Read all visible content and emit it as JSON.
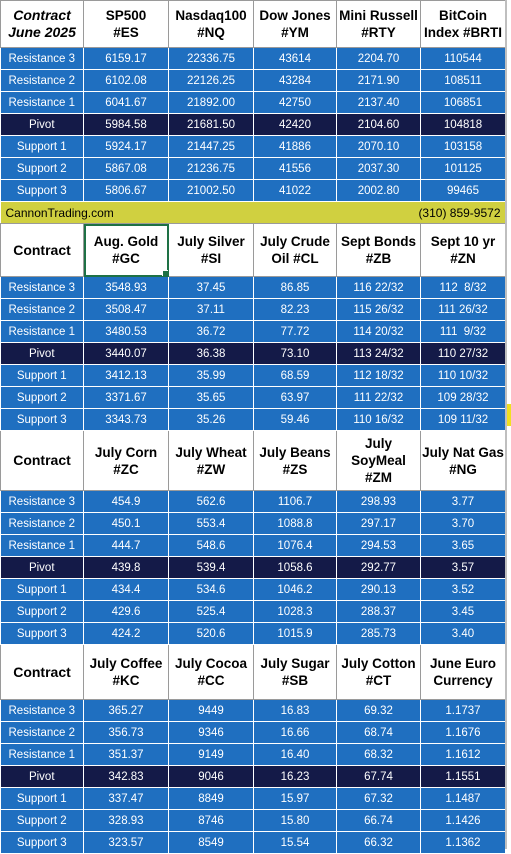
{
  "site": "CannonTrading.com",
  "phone": "(310) 859-9572",
  "sections": [
    {
      "label": "Contract\nJune 2025",
      "headers": [
        "SP500\n#ES",
        "Nasdaq100\n#NQ",
        "Dow Jones\n#YM",
        "Mini Russell\n#RTY",
        "BitCoin\nIndex #BRTI"
      ],
      "rows": [
        {
          "name": "Resistance 3",
          "values": [
            "6159.17",
            "22336.75",
            "43614",
            "2204.70",
            "110544"
          ]
        },
        {
          "name": "Resistance 2",
          "values": [
            "6102.08",
            "22126.25",
            "43284",
            "2171.90",
            "108511"
          ]
        },
        {
          "name": "Resistance 1",
          "values": [
            "6041.67",
            "21892.00",
            "42750",
            "2137.40",
            "106851"
          ]
        },
        {
          "name": "Pivot",
          "values": [
            "5984.58",
            "21681.50",
            "42420",
            "2104.60",
            "104818"
          ]
        },
        {
          "name": "Support 1",
          "values": [
            "5924.17",
            "21447.25",
            "41886",
            "2070.10",
            "103158"
          ]
        },
        {
          "name": "Support 2",
          "values": [
            "5867.08",
            "21236.75",
            "41556",
            "2037.30",
            "101125"
          ]
        },
        {
          "name": "Support 3",
          "values": [
            "5806.67",
            "21002.50",
            "41022",
            "2002.80",
            "99465"
          ]
        }
      ]
    },
    {
      "label": "Contract",
      "headers": [
        "Aug. Gold\n#GC",
        "July Silver\n#SI",
        "July Crude\nOil #CL",
        "Sept Bonds\n#ZB",
        "Sept 10 yr\n#ZN"
      ],
      "rows": [
        {
          "name": "Resistance 3",
          "values": [
            "3548.93",
            "37.45",
            "86.85",
            "116 22/32",
            "112  8/32"
          ]
        },
        {
          "name": "Resistance 2",
          "values": [
            "3508.47",
            "37.11",
            "82.23",
            "115 26/32",
            "111 26/32"
          ]
        },
        {
          "name": "Resistance 1",
          "values": [
            "3480.53",
            "36.72",
            "77.72",
            "114 20/32",
            "111  9/32"
          ]
        },
        {
          "name": "Pivot",
          "values": [
            "3440.07",
            "36.38",
            "73.10",
            "113 24/32",
            "110 27/32"
          ]
        },
        {
          "name": "Support 1",
          "values": [
            "3412.13",
            "35.99",
            "68.59",
            "112 18/32",
            "110 10/32"
          ]
        },
        {
          "name": "Support 2",
          "values": [
            "3371.67",
            "35.65",
            "63.97",
            "111 22/32",
            "109 28/32"
          ]
        },
        {
          "name": "Support 3",
          "values": [
            "3343.73",
            "35.26",
            "59.46",
            "110 16/32",
            "109 11/32"
          ]
        }
      ]
    },
    {
      "label": "Contract",
      "headers": [
        "July Corn\n#ZC",
        "July  Wheat\n#ZW",
        "July Beans\n#ZS",
        "July\nSoyMeal\n#ZM",
        "July Nat Gas\n#NG"
      ],
      "rows": [
        {
          "name": "Resistance 3",
          "values": [
            "454.9",
            "562.6",
            "1106.7",
            "298.93",
            "3.77"
          ]
        },
        {
          "name": "Resistance 2",
          "values": [
            "450.1",
            "553.4",
            "1088.8",
            "297.17",
            "3.70"
          ]
        },
        {
          "name": "Resistance 1",
          "values": [
            "444.7",
            "548.6",
            "1076.4",
            "294.53",
            "3.65"
          ]
        },
        {
          "name": "Pivot",
          "values": [
            "439.8",
            "539.4",
            "1058.6",
            "292.77",
            "3.57"
          ]
        },
        {
          "name": "Support 1",
          "values": [
            "434.4",
            "534.6",
            "1046.2",
            "290.13",
            "3.52"
          ]
        },
        {
          "name": "Support 2",
          "values": [
            "429.6",
            "525.4",
            "1028.3",
            "288.37",
            "3.45"
          ]
        },
        {
          "name": "Support 3",
          "values": [
            "424.2",
            "520.6",
            "1015.9",
            "285.73",
            "3.40"
          ]
        }
      ]
    },
    {
      "label": "Contract",
      "headers": [
        "July Coffee\n#KC",
        "July Cocoa\n#CC",
        "July Sugar\n#SB",
        "July Cotton\n#CT",
        "June Euro\nCurrency"
      ],
      "rows": [
        {
          "name": "Resistance 3",
          "values": [
            "365.27",
            "9449",
            "16.83",
            "69.32",
            "1.1737"
          ]
        },
        {
          "name": "Resistance 2",
          "values": [
            "356.73",
            "9346",
            "16.66",
            "68.74",
            "1.1676"
          ]
        },
        {
          "name": "Resistance 1",
          "values": [
            "351.37",
            "9149",
            "16.40",
            "68.32",
            "1.1612"
          ]
        },
        {
          "name": "Pivot",
          "values": [
            "342.83",
            "9046",
            "16.23",
            "67.74",
            "1.1551"
          ]
        },
        {
          "name": "Support 1",
          "values": [
            "337.47",
            "8849",
            "15.97",
            "67.32",
            "1.1487"
          ]
        },
        {
          "name": "Support 2",
          "values": [
            "328.93",
            "8746",
            "15.80",
            "66.74",
            "1.1426"
          ]
        },
        {
          "name": "Support 3",
          "values": [
            "323.57",
            "8549",
            "15.54",
            "66.32",
            "1.1362"
          ]
        }
      ]
    }
  ]
}
